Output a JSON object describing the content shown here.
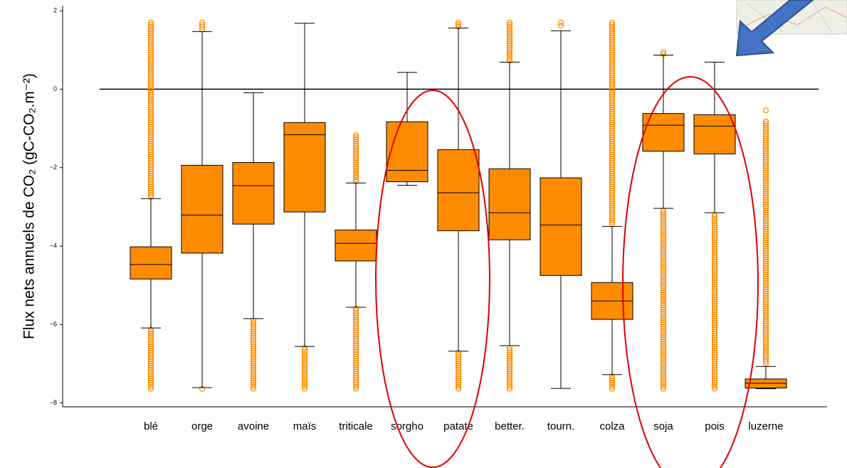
{
  "chart_data": {
    "type": "box",
    "ylabel": "Flux nets annuels de CO₂ (gC-CO₂.m⁻²)",
    "categories": [
      "blé",
      "orge",
      "avoine",
      "maïs",
      "triticale",
      "sorgho",
      "patate",
      "better.",
      "tourn.",
      "colza",
      "soja",
      "pois",
      "luzerne"
    ],
    "color": "#ff8c00",
    "hline": 0,
    "ylim": [
      -8.1,
      2.13
    ],
    "yticks": [
      {
        "value": -8,
        "label": "−8"
      },
      {
        "value": -6,
        "label": "−6"
      },
      {
        "value": -4,
        "label": "−4"
      },
      {
        "value": -2,
        "label": "−2"
      },
      0,
      2
    ],
    "boxes": [
      {
        "whisker_low": -6.09,
        "q1": -4.84,
        "median": -4.47,
        "q3": -4.02,
        "whisker_high": -2.79,
        "fliers": [
          [
            -7.64,
            -6.13
          ],
          [
            -2.75,
            1.7
          ]
        ]
      },
      {
        "whisker_low": -7.61,
        "q1": -4.18,
        "median": -3.21,
        "q3": -1.94,
        "whisker_high": 1.47,
        "fliers": [
          [
            -7.64,
            -7.64
          ],
          [
            1.52,
            1.7
          ]
        ]
      },
      {
        "whisker_low": -5.85,
        "q1": -3.44,
        "median": -2.46,
        "q3": -1.87,
        "whisker_high": -0.09,
        "fliers": [
          [
            -7.64,
            -5.9
          ]
        ]
      },
      {
        "whisker_low": -6.56,
        "q1": -3.13,
        "median": -1.16,
        "q3": -0.85,
        "whisker_high": 1.68,
        "fliers": [
          [
            -7.64,
            -6.6
          ]
        ]
      },
      {
        "whisker_low": -5.56,
        "q1": -4.38,
        "median": -3.93,
        "q3": -3.59,
        "whisker_high": -2.39,
        "fliers": [
          [
            -7.64,
            -5.6
          ],
          [
            -2.35,
            -1.17
          ]
        ]
      },
      {
        "whisker_low": -2.45,
        "q1": -2.36,
        "median": -2.07,
        "q3": -0.83,
        "whisker_high": 0.43,
        "fliers": []
      },
      {
        "whisker_low": -6.68,
        "q1": -3.61,
        "median": -2.64,
        "q3": -1.54,
        "whisker_high": 1.56,
        "fliers": [
          [
            -7.64,
            -6.72
          ],
          [
            1.6,
            1.7
          ]
        ]
      },
      {
        "whisker_low": -6.54,
        "q1": -3.84,
        "median": -3.15,
        "q3": -2.03,
        "whisker_high": 0.69,
        "fliers": [
          [
            -7.64,
            -6.6
          ],
          [
            0.73,
            1.7
          ]
        ]
      },
      {
        "whisker_low": -7.63,
        "q1": -4.75,
        "median": -3.46,
        "q3": -2.26,
        "whisker_high": 1.49,
        "fliers": [
          [
            1.62,
            1.7
          ]
        ]
      },
      {
        "whisker_low": -7.28,
        "q1": -5.87,
        "median": -5.4,
        "q3": -4.93,
        "whisker_high": -3.5,
        "fliers": [
          [
            -7.64,
            -7.32
          ],
          [
            -3.45,
            1.7
          ]
        ]
      },
      {
        "whisker_low": -3.04,
        "q1": -1.58,
        "median": -0.92,
        "q3": -0.62,
        "whisker_high": 0.87,
        "fliers": [
          [
            -7.64,
            -3.1
          ],
          [
            0.9,
            0.95
          ]
        ]
      },
      {
        "whisker_low": -3.15,
        "q1": -1.65,
        "median": -0.94,
        "q3": -0.65,
        "whisker_high": 0.69,
        "fliers": [
          [
            -7.64,
            -3.2
          ]
        ]
      },
      {
        "whisker_low": -7.64,
        "q1": -7.62,
        "median": -7.5,
        "q3": -7.39,
        "whisker_high": -7.07,
        "fliers": [
          [
            -7.0,
            -0.82
          ],
          [
            -0.54,
            -0.54
          ]
        ]
      }
    ]
  }
}
